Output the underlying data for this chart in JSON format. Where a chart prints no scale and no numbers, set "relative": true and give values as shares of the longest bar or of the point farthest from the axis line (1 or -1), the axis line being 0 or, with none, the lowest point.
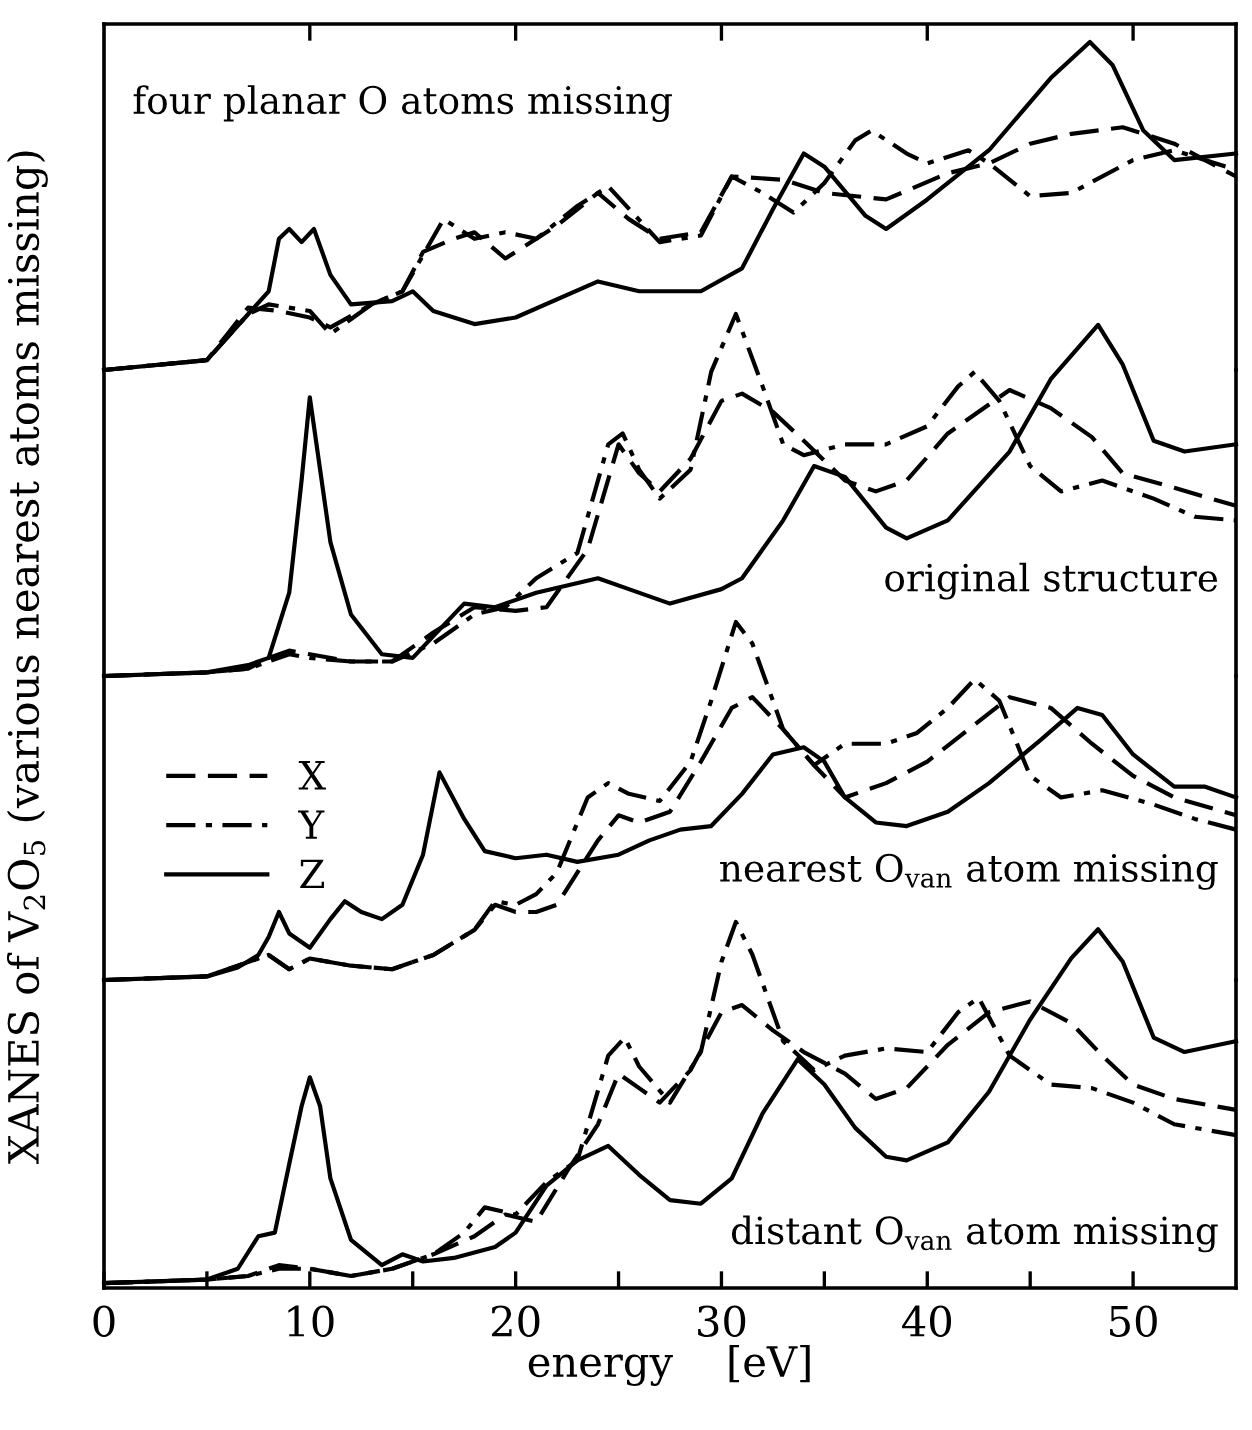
{
  "chart_data": [
    {
      "type": "line",
      "title": "four planar O atoms missing",
      "relative": true,
      "xlim": [
        0,
        55
      ],
      "xticks": [
        {
          "value": 10,
          "label": null
        },
        {
          "value": 20,
          "label": null
        },
        {
          "value": 30,
          "label": null
        },
        {
          "value": 40,
          "label": null
        },
        {
          "value": 50,
          "label": null
        }
      ],
      "tick_labels": false,
      "series": [
        {
          "color": "#000000",
          "line_style": "dashed",
          "x": [
            0,
            5,
            6,
            7,
            8.5,
            10,
            11,
            13,
            14.5,
            15.5,
            17,
            18,
            19.5,
            22,
            24,
            25.5,
            27,
            29,
            30.5,
            33,
            35,
            38,
            41,
            43,
            45,
            47,
            49.5,
            52,
            55
          ],
          "values": [
            0,
            0.03,
            0.11,
            0.19,
            0.18,
            0.16,
            0.13,
            0.2,
            0.24,
            0.36,
            0.4,
            0.42,
            0.34,
            0.44,
            0.54,
            0.46,
            0.4,
            0.42,
            0.59,
            0.58,
            0.54,
            0.52,
            0.6,
            0.63,
            0.69,
            0.72,
            0.74,
            0.69,
            0.59
          ]
        },
        {
          "color": "#000000",
          "line_style": "dashdot",
          "x": [
            0,
            5,
            7,
            8,
            10,
            11,
            13,
            14.5,
            16.5,
            18,
            19.5,
            21,
            23,
            24.5,
            27,
            29,
            30.5,
            32,
            33.5,
            35,
            36.5,
            37.3,
            39,
            40,
            42,
            43,
            45,
            47,
            50,
            52,
            55
          ],
          "values": [
            0,
            0.03,
            0.17,
            0.2,
            0.18,
            0.11,
            0.2,
            0.24,
            0.46,
            0.4,
            0.42,
            0.4,
            0.5,
            0.56,
            0.39,
            0.41,
            0.59,
            0.54,
            0.48,
            0.57,
            0.7,
            0.73,
            0.66,
            0.63,
            0.67,
            0.63,
            0.53,
            0.54,
            0.64,
            0.67,
            0.61
          ]
        },
        {
          "color": "#000000",
          "line_style": "solid",
          "x": [
            0,
            5,
            7,
            8,
            8.5,
            9,
            9.6,
            10.2,
            11,
            12,
            14,
            15,
            16,
            18,
            20,
            24,
            26,
            29,
            31,
            32.5,
            34,
            35,
            37,
            38,
            40,
            43,
            46,
            47.9,
            49,
            50.5,
            52,
            55
          ],
          "values": [
            0,
            0.03,
            0.17,
            0.24,
            0.4,
            0.43,
            0.39,
            0.43,
            0.29,
            0.2,
            0.21,
            0.24,
            0.18,
            0.14,
            0.16,
            0.27,
            0.24,
            0.24,
            0.31,
            0.49,
            0.66,
            0.62,
            0.47,
            0.43,
            0.52,
            0.67,
            0.89,
            1.0,
            0.93,
            0.73,
            0.64,
            0.66
          ]
        }
      ]
    },
    {
      "type": "line",
      "title": "original structure",
      "relative": true,
      "xlim": [
        0,
        55
      ],
      "tick_labels": false,
      "series": [
        {
          "color": "#000000",
          "line_style": "dashed",
          "x": [
            0,
            5,
            7,
            8,
            9,
            10,
            12,
            14,
            16,
            18,
            20,
            21.5,
            23.5,
            25,
            26,
            27,
            28.5,
            30,
            31,
            32.5,
            34,
            36,
            37.5,
            39,
            41,
            44,
            46,
            48,
            49.5,
            52,
            55
          ],
          "values": [
            0,
            0.01,
            0.02,
            0.05,
            0.07,
            0.06,
            0.04,
            0.04,
            0.12,
            0.19,
            0.18,
            0.19,
            0.35,
            0.64,
            0.56,
            0.51,
            0.6,
            0.76,
            0.78,
            0.73,
            0.65,
            0.54,
            0.51,
            0.54,
            0.67,
            0.79,
            0.74,
            0.66,
            0.56,
            0.52,
            0.47
          ]
        },
        {
          "color": "#000000",
          "line_style": "dashdot",
          "x": [
            0,
            5,
            7,
            8,
            9,
            10,
            12,
            14,
            16,
            18,
            19.5,
            21,
            23,
            24.5,
            25.2,
            26,
            27,
            28.5,
            29.5,
            30.7,
            32,
            33,
            34,
            36,
            38,
            40,
            41.5,
            42.3,
            43.5,
            45,
            46.5,
            48.5,
            51,
            53,
            55
          ],
          "values": [
            0,
            0.01,
            0.02,
            0.04,
            0.06,
            0.05,
            0.04,
            0.04,
            0.09,
            0.17,
            0.19,
            0.27,
            0.34,
            0.64,
            0.67,
            0.57,
            0.49,
            0.57,
            0.84,
            1.0,
            0.8,
            0.64,
            0.61,
            0.64,
            0.64,
            0.69,
            0.8,
            0.84,
            0.76,
            0.58,
            0.51,
            0.54,
            0.49,
            0.44,
            0.43
          ]
        },
        {
          "color": "#000000",
          "line_style": "solid",
          "x": [
            0,
            5,
            7,
            8,
            9,
            9.6,
            10,
            10.5,
            11,
            12,
            13.5,
            15,
            16,
            17.5,
            19,
            21,
            24,
            25.5,
            27.5,
            30,
            31,
            33,
            34.5,
            36,
            38,
            39,
            41,
            44,
            46,
            48.3,
            49.5,
            51,
            52.5,
            55
          ],
          "values": [
            0,
            0.01,
            0.03,
            0.05,
            0.23,
            0.54,
            0.77,
            0.57,
            0.37,
            0.17,
            0.06,
            0.05,
            0.11,
            0.2,
            0.19,
            0.23,
            0.27,
            0.24,
            0.2,
            0.24,
            0.27,
            0.43,
            0.58,
            0.55,
            0.41,
            0.38,
            0.43,
            0.62,
            0.82,
            0.97,
            0.86,
            0.65,
            0.62,
            0.64
          ]
        }
      ]
    },
    {
      "type": "line",
      "title": "nearest O$_{van}$ atom missing",
      "relative": true,
      "xlim": [
        0,
        55
      ],
      "tick_labels": false,
      "legend": "left",
      "series": [
        {
          "name": "X",
          "color": "#000000",
          "line_style": "dashed",
          "x": [
            0,
            5,
            7,
            8,
            9,
            10,
            12,
            14,
            16,
            18,
            19,
            20,
            21,
            22,
            24,
            25,
            26,
            27.5,
            29,
            30.5,
            31.5,
            33,
            34.5,
            36,
            38,
            40,
            42,
            44,
            46,
            48,
            50,
            52,
            55
          ],
          "values": [
            0,
            0.01,
            0.05,
            0.07,
            0.03,
            0.06,
            0.04,
            0.03,
            0.07,
            0.14,
            0.21,
            0.19,
            0.19,
            0.21,
            0.39,
            0.46,
            0.44,
            0.47,
            0.61,
            0.76,
            0.79,
            0.7,
            0.6,
            0.51,
            0.55,
            0.61,
            0.7,
            0.79,
            0.76,
            0.66,
            0.57,
            0.51,
            0.46
          ]
        },
        {
          "name": "Y",
          "color": "#000000",
          "line_style": "dashdot",
          "x": [
            0,
            5,
            7,
            8,
            9,
            10,
            12,
            14,
            16,
            18,
            19,
            20,
            21,
            22,
            23.5,
            24.5,
            25.5,
            27,
            28.5,
            29.5,
            30.7,
            31.5,
            33,
            34.5,
            36,
            38,
            39.5,
            41,
            42.3,
            43.5,
            45,
            46.5,
            48.5,
            51,
            53,
            55
          ],
          "values": [
            0,
            0.01,
            0.05,
            0.07,
            0.03,
            0.06,
            0.04,
            0.03,
            0.07,
            0.14,
            0.22,
            0.21,
            0.24,
            0.3,
            0.51,
            0.55,
            0.52,
            0.5,
            0.61,
            0.78,
            1.0,
            0.94,
            0.7,
            0.6,
            0.66,
            0.66,
            0.69,
            0.76,
            0.84,
            0.78,
            0.57,
            0.51,
            0.53,
            0.49,
            0.45,
            0.42
          ]
        },
        {
          "name": "Z",
          "color": "#000000",
          "line_style": "solid",
          "x": [
            0,
            5,
            6.5,
            7.5,
            8,
            8.5,
            9,
            10,
            11,
            11.7,
            12.5,
            13.5,
            14.5,
            15.5,
            16.3,
            17.5,
            18.5,
            20,
            21.5,
            23,
            25,
            26.5,
            28,
            29.5,
            31,
            32.5,
            34,
            35,
            36,
            37.5,
            39,
            41,
            43,
            45.5,
            47.3,
            48.5,
            50,
            52,
            53.5,
            55
          ],
          "values": [
            0,
            0.01,
            0.035,
            0.07,
            0.12,
            0.19,
            0.13,
            0.09,
            0.17,
            0.22,
            0.19,
            0.17,
            0.21,
            0.35,
            0.58,
            0.45,
            0.36,
            0.34,
            0.35,
            0.33,
            0.35,
            0.39,
            0.42,
            0.43,
            0.52,
            0.63,
            0.65,
            0.61,
            0.51,
            0.44,
            0.43,
            0.47,
            0.55,
            0.67,
            0.76,
            0.74,
            0.63,
            0.54,
            0.54,
            0.51
          ]
        }
      ]
    },
    {
      "type": "line",
      "title": "distant O$_{van}$ atom missing",
      "relative": true,
      "xlabel": "energy    [eV]",
      "ylabel": "XANES of V$_{2}$O$_{5}$ (various nearest atoms missing)",
      "xlim": [
        0,
        55
      ],
      "xticks": [
        0,
        {
          "value": 5,
          "label": null
        },
        10,
        {
          "value": 15,
          "label": null
        },
        20,
        {
          "value": 25,
          "label": null
        },
        30,
        {
          "value": 35,
          "label": null
        },
        40,
        {
          "value": 45,
          "label": null
        },
        50
      ],
      "tick_labels": "x",
      "series": [
        {
          "color": "#000000",
          "line_style": "dashed",
          "x": [
            0,
            5,
            7,
            8.5,
            10,
            12,
            14,
            16,
            18,
            19.5,
            21,
            22.5,
            24,
            25,
            26,
            27,
            28.5,
            30,
            31,
            32.5,
            34,
            36,
            37.5,
            39,
            41,
            43,
            45,
            47,
            48.5,
            50,
            52,
            55
          ],
          "values": [
            0,
            0.01,
            0.02,
            0.05,
            0.04,
            0.02,
            0.04,
            0.08,
            0.13,
            0.19,
            0.17,
            0.31,
            0.44,
            0.58,
            0.54,
            0.5,
            0.59,
            0.75,
            0.77,
            0.7,
            0.64,
            0.58,
            0.51,
            0.54,
            0.66,
            0.75,
            0.78,
            0.72,
            0.63,
            0.55,
            0.51,
            0.48
          ]
        },
        {
          "color": "#000000",
          "line_style": "dashdot",
          "x": [
            0,
            5,
            7,
            8.5,
            10,
            12,
            14,
            16,
            17.5,
            18.5,
            20,
            21.5,
            23,
            24.5,
            25.3,
            26,
            27.5,
            29,
            30,
            30.7,
            31.5,
            33,
            34.5,
            36,
            38,
            40,
            41.5,
            42.5,
            44,
            46,
            48,
            50,
            52,
            55
          ],
          "values": [
            0,
            0.01,
            0.02,
            0.04,
            0.04,
            0.02,
            0.04,
            0.08,
            0.14,
            0.21,
            0.19,
            0.28,
            0.34,
            0.63,
            0.68,
            0.6,
            0.5,
            0.64,
            0.89,
            1.0,
            0.91,
            0.67,
            0.59,
            0.63,
            0.65,
            0.64,
            0.75,
            0.79,
            0.63,
            0.55,
            0.54,
            0.5,
            0.44,
            0.41
          ]
        },
        {
          "color": "#000000",
          "line_style": "solid",
          "x": [
            0,
            5,
            6.5,
            7.5,
            8.3,
            9,
            9.6,
            10,
            10.5,
            11,
            12,
            13.5,
            14.5,
            15.5,
            17,
            19,
            20,
            21.5,
            23,
            24.5,
            26,
            27.5,
            29,
            30.5,
            32,
            33.7,
            35,
            36.5,
            38,
            39,
            41,
            43,
            45,
            47,
            48.3,
            49.5,
            51,
            52.5,
            55
          ],
          "values": [
            0,
            0.01,
            0.04,
            0.13,
            0.14,
            0.33,
            0.49,
            0.57,
            0.49,
            0.29,
            0.12,
            0.05,
            0.08,
            0.06,
            0.07,
            0.1,
            0.14,
            0.27,
            0.34,
            0.38,
            0.3,
            0.23,
            0.22,
            0.29,
            0.47,
            0.62,
            0.55,
            0.43,
            0.35,
            0.34,
            0.39,
            0.53,
            0.73,
            0.9,
            0.98,
            0.89,
            0.68,
            0.64,
            0.67
          ]
        }
      ]
    }
  ]
}
